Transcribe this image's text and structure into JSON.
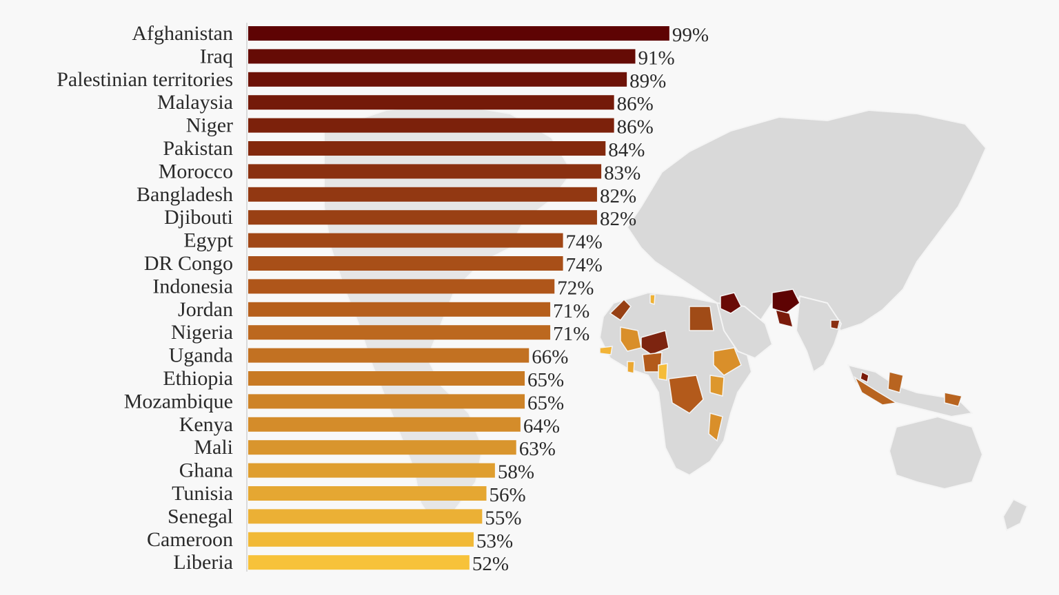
{
  "chart_data": {
    "type": "bar",
    "orientation": "horizontal",
    "title": "",
    "xlabel": "",
    "ylabel": "",
    "xlim": [
      0,
      100
    ],
    "value_suffix": "%",
    "grid": false,
    "categories": [
      "Afghanistan",
      "Iraq",
      "Palestinian territories",
      "Malaysia",
      "Niger",
      "Pakistan",
      "Morocco",
      "Bangladesh",
      "Djibouti",
      "Egypt",
      "DR Congo",
      "Indonesia",
      "Jordan",
      "Nigeria",
      "Uganda",
      "Ethiopia",
      "Mozambique",
      "Kenya",
      "Mali",
      "Ghana",
      "Tunisia",
      "Senegal",
      "Cameroon",
      "Liberia"
    ],
    "values": [
      99,
      91,
      89,
      86,
      86,
      84,
      83,
      82,
      82,
      74,
      74,
      72,
      71,
      71,
      66,
      65,
      65,
      64,
      63,
      58,
      56,
      55,
      53,
      52
    ],
    "color_scale": {
      "high": "#5e0303",
      "mid": "#b35a1b",
      "low": "#f7c23a"
    }
  },
  "map": {
    "land_color": "#d9d9d9",
    "border_color": "#f4f4f4"
  }
}
